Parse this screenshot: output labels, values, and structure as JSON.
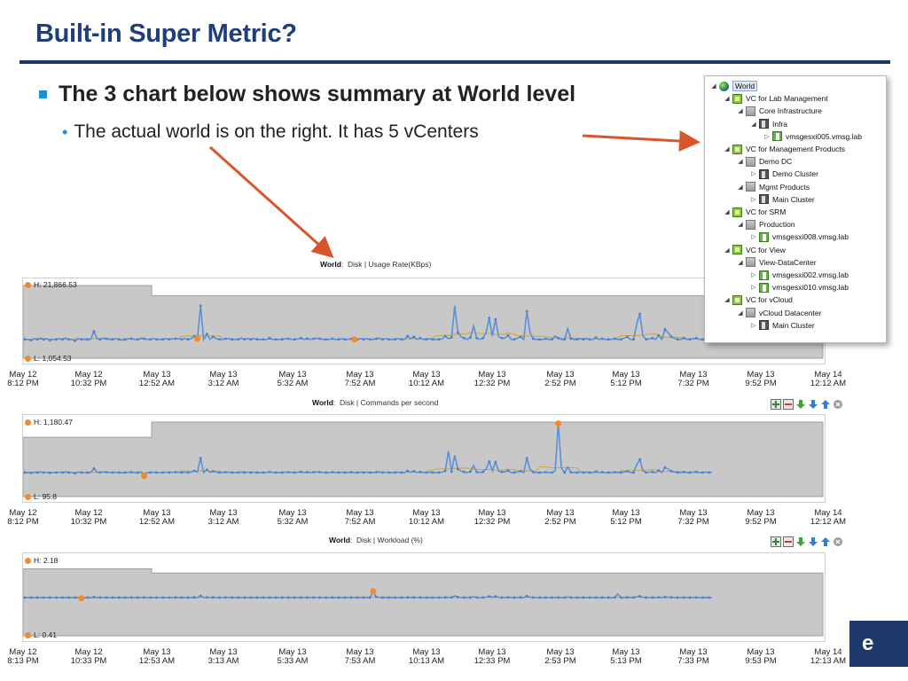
{
  "slide": {
    "title": "Built-in Super Metric?",
    "bullet_main": "The 3 chart below shows summary at World level",
    "bullet_sub": "The actual world is on the right. It has 5 vCenters",
    "logo_text": "e",
    "colors": {
      "title": "#1f3e7a",
      "rule": "#1a3568",
      "bullet": "#1c8fd4",
      "arrow": "#d9552b"
    }
  },
  "tree": {
    "items": [
      {
        "label": "World",
        "icon": "globe-icon",
        "expander": "◢",
        "selected": true
      },
      {
        "label": "VC for Lab Management",
        "icon": "vcenter-icon",
        "expander": "◢"
      },
      {
        "label": "Core Infrastructure",
        "icon": "datacenter-icon",
        "expander": "◢"
      },
      {
        "label": "Infra",
        "icon": "cluster-icon",
        "expander": "◢"
      },
      {
        "label": "vmsgesxi005.vmsg.lab",
        "icon": "host-icon",
        "expander": "▷"
      },
      {
        "label": "VC for Management Products",
        "icon": "vcenter-icon",
        "expander": "◢"
      },
      {
        "label": "Demo DC",
        "icon": "datacenter-icon",
        "expander": "◢"
      },
      {
        "label": "Demo Cluster",
        "icon": "cluster-icon",
        "expander": "▷"
      },
      {
        "label": "Mgmt Products",
        "icon": "datacenter-icon",
        "expander": "◢"
      },
      {
        "label": "Main Cluster",
        "icon": "cluster-icon",
        "expander": "▷"
      },
      {
        "label": "VC for SRM",
        "icon": "vcenter-icon",
        "expander": "◢"
      },
      {
        "label": "Production",
        "icon": "datacenter-icon",
        "expander": "◢"
      },
      {
        "label": "vmsgesxi008.vmsg.lab",
        "icon": "host-icon",
        "expander": "▷"
      },
      {
        "label": "VC for View",
        "icon": "vcenter-icon",
        "expander": "◢"
      },
      {
        "label": "View-DataCenter",
        "icon": "datacenter-icon",
        "expander": "◢"
      },
      {
        "label": "vmsgesxi002.vmsg.lab",
        "icon": "host-icon",
        "expander": "▷"
      },
      {
        "label": "vmsgesxi010.vmsg.lab",
        "icon": "host-icon",
        "expander": "▷"
      },
      {
        "label": "VC for vCloud",
        "icon": "vcenter-icon",
        "expander": "◢"
      },
      {
        "label": "vCloud Datacenter",
        "icon": "datacenter-icon",
        "expander": "◢"
      },
      {
        "label": "Main Cluster",
        "icon": "cluster-icon",
        "expander": "▷"
      }
    ]
  },
  "chart_icons": [
    "zoom-in-icon",
    "remove-icon",
    "move-down-icon",
    "move-down-blue-icon",
    "move-up-icon",
    "close-icon"
  ],
  "chart_data": [
    {
      "type": "line",
      "resource": "World",
      "title": "Disk | Usage Rate(KBps)",
      "high_label": "H: 21,866.53",
      "low_label": "L: 1,054.53",
      "high": 21866.53,
      "low": 1054.53,
      "x_ticks": [
        [
          "May 12",
          "8:12 PM"
        ],
        [
          "May 12",
          "10:32 PM"
        ],
        [
          "May 13",
          "12:52 AM"
        ],
        [
          "May 13",
          "3:12 AM"
        ],
        [
          "May 13",
          "5:32 AM"
        ],
        [
          "May 13",
          "7:52 AM"
        ],
        [
          "May 13",
          "10:12 AM"
        ],
        [
          "May 13",
          "12:32 PM"
        ],
        [
          "May 13",
          "2:52 PM"
        ],
        [
          "May 13",
          "5:12 PM"
        ],
        [
          "May 13",
          "7:32 PM"
        ],
        [
          "May 13",
          "9:52 PM"
        ],
        [
          "May 14",
          "12:12 AM"
        ]
      ],
      "series": [
        {
          "name": "",
          "color": "#5b8fd9",
          "values": [
            0.2,
            0.2,
            0.19,
            0.21,
            0.2,
            0.22,
            0.2,
            0.21,
            0.19,
            0.2,
            0.2,
            0.21,
            0.2,
            0.22,
            0.2,
            0.2,
            0.18,
            0.21,
            0.2,
            0.2,
            0.2,
            0.2,
            0.32,
            0.21,
            0.2,
            0.22,
            0.21,
            0.2,
            0.2,
            0.21,
            0.2,
            0.19,
            0.2,
            0.21,
            0.21,
            0.2,
            0.2,
            0.22,
            0.21,
            0.2,
            0.2,
            0.21,
            0.2,
            0.2,
            0.2,
            0.21,
            0.2,
            0.21,
            0.21,
            0.21,
            0.2,
            0.21,
            0.2,
            0.21,
            0.25,
            0.21,
            0.7,
            0.2,
            0.28,
            0.2,
            0.24,
            0.21,
            0.2,
            0.2,
            0.21,
            0.21,
            0.2,
            0.2,
            0.2,
            0.22,
            0.2,
            0.21,
            0.2,
            0.21,
            0.2,
            0.2,
            0.2,
            0.2,
            0.22,
            0.2,
            0.2,
            0.2,
            0.2,
            0.21,
            0.21,
            0.2,
            0.2,
            0.21,
            0.22,
            0.2,
            0.21,
            0.2,
            0.21,
            0.22,
            0.21,
            0.2,
            0.2,
            0.2,
            0.21,
            0.2,
            0.2,
            0.21,
            0.2,
            0.2,
            0.21,
            0.2,
            0.2,
            0.21,
            0.2,
            0.21,
            0.2,
            0.2,
            0.21,
            0.22,
            0.2,
            0.21,
            0.2,
            0.2,
            0.2,
            0.21,
            0.2,
            0.2,
            0.25,
            0.21,
            0.24,
            0.2,
            0.22,
            0.2,
            0.2,
            0.21,
            0.2,
            0.2,
            0.2,
            0.21,
            0.25,
            0.21,
            0.23,
            0.7,
            0.3,
            0.24,
            0.22,
            0.2,
            0.23,
            0.4,
            0.22,
            0.2,
            0.22,
            0.3,
            0.52,
            0.25,
            0.5,
            0.24,
            0.22,
            0.22,
            0.26,
            0.2,
            0.2,
            0.22,
            0.24,
            0.2,
            0.62,
            0.3,
            0.21,
            0.2,
            0.2,
            0.2,
            0.21,
            0.2,
            0.2,
            0.25,
            0.22,
            0.2,
            0.2,
            0.36,
            0.21,
            0.2,
            0.2,
            0.21,
            0.2,
            0.21,
            0.2,
            0.2,
            0.23,
            0.2,
            0.21,
            0.2,
            0.2,
            0.2,
            0.21,
            0.2,
            0.2,
            0.22,
            0.24,
            0.2,
            0.2,
            0.43,
            0.58,
            0.25,
            0.2,
            0.21,
            0.22,
            0.2,
            0.26,
            0.2,
            0.35,
            0.3,
            0.24,
            0.22,
            0.2,
            0.2,
            0.22,
            0.2,
            0.2,
            0.21,
            0.22,
            0.2,
            0.2,
            0.21,
            0.2,
            0.21
          ]
        },
        {
          "name": "",
          "color": "#c9a53a",
          "values": []
        }
      ],
      "band_high_before": 1.0,
      "band_high_after": 0.85,
      "band_low": 0.0,
      "high_marker_index": 55,
      "low_marker_index": 105
    },
    {
      "type": "line",
      "resource": "World",
      "title": "Disk | Commands per second",
      "high_label": "H: 1,180.47",
      "low_label": "L: 95.8",
      "high": 1180.47,
      "low": 95.8,
      "x_ticks": [
        [
          "May 12",
          "8:12 PM"
        ],
        [
          "May 12",
          "10:32 PM"
        ],
        [
          "May 13",
          "12:52 AM"
        ],
        [
          "May 13",
          "3:12 AM"
        ],
        [
          "May 13",
          "5:32 AM"
        ],
        [
          "May 13",
          "7:52 AM"
        ],
        [
          "May 13",
          "10:12 AM"
        ],
        [
          "May 13",
          "12:32 PM"
        ],
        [
          "May 13",
          "2:52 PM"
        ],
        [
          "May 13",
          "5:12 PM"
        ],
        [
          "May 13",
          "7:32 PM"
        ],
        [
          "May 13",
          "9:52 PM"
        ],
        [
          "May 14",
          "12:12 AM"
        ]
      ],
      "band_high_before": 0.78,
      "band_high_after": 1.0,
      "band_low": 0.0,
      "high_marker_index": 170,
      "low_marker_index": 38
    },
    {
      "type": "line",
      "resource": "World",
      "title": "Disk | Workload (%)",
      "high_label": "H: 2.18",
      "low_label": "L: 0.41",
      "high": 2.18,
      "low": 0.41,
      "x_ticks": [
        [
          "May 12",
          "8:13 PM"
        ],
        [
          "May 12",
          "10:33 PM"
        ],
        [
          "May 13",
          "12:53 AM"
        ],
        [
          "May 13",
          "3:13 AM"
        ],
        [
          "May 13",
          "5:33 AM"
        ],
        [
          "May 13",
          "7:53 AM"
        ],
        [
          "May 13",
          "10:13 AM"
        ],
        [
          "May 13",
          "12:33 PM"
        ],
        [
          "May 13",
          "2:53 PM"
        ],
        [
          "May 13",
          "5:13 PM"
        ],
        [
          "May 13",
          "7:33 PM"
        ],
        [
          "May 13",
          "9:53 PM"
        ],
        [
          "May 14",
          "12:13 AM"
        ]
      ],
      "band_high_before": 0.88,
      "band_high_after": 0.82,
      "band_low": 0.0,
      "high_marker_index": 111,
      "low_marker_index": 18
    }
  ]
}
